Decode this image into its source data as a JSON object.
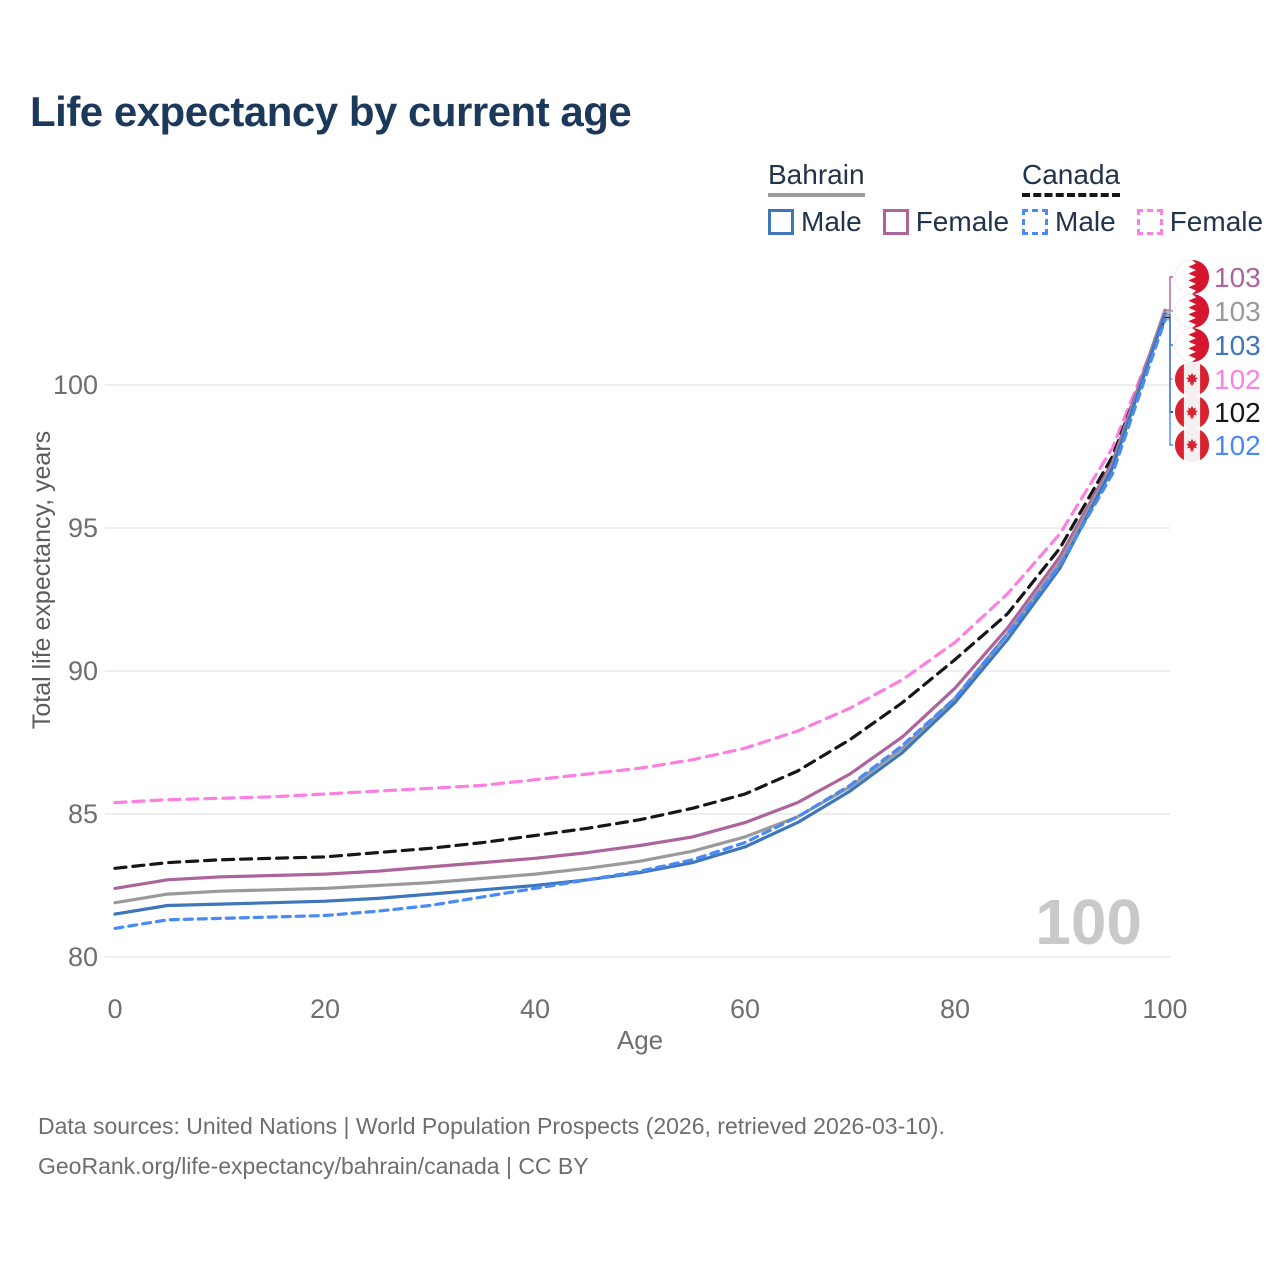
{
  "title": "Life expectancy by current age",
  "legend": {
    "groups": [
      {
        "label": "Bahrain",
        "underline_style": "solid",
        "underline_color": "#9b9b9b",
        "items": [
          {
            "label": "Male",
            "color": "#3d76bb",
            "dashed": false
          },
          {
            "label": "Female",
            "color": "#ad639c",
            "dashed": false
          }
        ]
      },
      {
        "label": "Canada",
        "underline_style": "dashed",
        "underline_color": "#161616",
        "items": [
          {
            "label": "Male",
            "color": "#4a8af4",
            "dashed": true
          },
          {
            "label": "Female",
            "color": "#fc7fe1",
            "dashed": true
          }
        ]
      }
    ]
  },
  "chart_data": {
    "type": "line",
    "title": "Life expectancy by current age",
    "xlabel": "Age",
    "ylabel": "Total life expectancy, years",
    "xticks": [
      0,
      20,
      40,
      60,
      80,
      100
    ],
    "yticks": [
      80,
      85,
      90,
      95,
      100
    ],
    "xlim": [
      0,
      100
    ],
    "ylim": [
      79.8,
      103.6
    ],
    "grid": "horizontal-only",
    "grid_color": "#e9e9e9",
    "watermark": "100",
    "x": [
      0,
      5,
      10,
      15,
      20,
      25,
      30,
      35,
      40,
      45,
      50,
      55,
      60,
      65,
      70,
      75,
      80,
      85,
      90,
      95,
      100
    ],
    "series": [
      {
        "id": "canada-female",
        "name": "Canada Female",
        "country": "Canada",
        "sex": "Female",
        "color": "#fc7fe1",
        "dash": "11 7",
        "flag": "ca",
        "row": 3,
        "end_label": "102",
        "values": [
          85.4,
          85.5,
          85.55,
          85.6,
          85.7,
          85.8,
          85.9,
          86.0,
          86.2,
          86.4,
          86.6,
          86.9,
          87.3,
          87.9,
          88.7,
          89.7,
          91.0,
          92.7,
          94.8,
          97.8,
          102.42
        ]
      },
      {
        "id": "canada-both",
        "name": "Canada Both sexes",
        "country": "Canada",
        "sex": "Both",
        "color": "#161616",
        "dash": "11 7",
        "flag": "ca",
        "row": 4,
        "end_label": "102",
        "values": [
          83.1,
          83.3,
          83.4,
          83.45,
          83.5,
          83.65,
          83.8,
          84.0,
          84.25,
          84.5,
          84.8,
          85.2,
          85.7,
          86.5,
          87.6,
          88.9,
          90.4,
          92.0,
          94.3,
          97.5,
          102.36
        ]
      },
      {
        "id": "bahrain-female",
        "name": "Bahrain Female",
        "country": "Bahrain",
        "sex": "Female",
        "color": "#ad639c",
        "dash": null,
        "flag": "bh",
        "row": 0,
        "end_label": "103",
        "values": [
          82.4,
          82.7,
          82.8,
          82.85,
          82.9,
          83.0,
          83.15,
          83.3,
          83.45,
          83.65,
          83.9,
          84.2,
          84.7,
          85.4,
          86.4,
          87.7,
          89.4,
          91.5,
          94.0,
          97.3,
          102.62
        ]
      },
      {
        "id": "bahrain-both",
        "name": "Bahrain Both sexes",
        "country": "Bahrain",
        "sex": "Both",
        "color": "#9a9a9a",
        "dash": null,
        "flag": "bh",
        "row": 1,
        "end_label": "103",
        "values": [
          81.9,
          82.2,
          82.3,
          82.35,
          82.4,
          82.5,
          82.6,
          82.75,
          82.9,
          83.1,
          83.35,
          83.7,
          84.2,
          84.9,
          85.95,
          87.3,
          89.05,
          91.3,
          93.8,
          97.2,
          102.55
        ]
      },
      {
        "id": "bahrain-male",
        "name": "Bahrain Male",
        "country": "Bahrain",
        "sex": "Male",
        "color": "#3d76bb",
        "dash": null,
        "flag": "bh",
        "row": 2,
        "end_label": "103",
        "values": [
          81.5,
          81.8,
          81.85,
          81.9,
          81.95,
          82.05,
          82.2,
          82.35,
          82.5,
          82.7,
          82.95,
          83.3,
          83.85,
          84.7,
          85.8,
          87.15,
          88.9,
          91.1,
          93.6,
          97.1,
          102.48
        ]
      },
      {
        "id": "canada-male",
        "name": "Canada Male",
        "country": "Canada",
        "sex": "Male",
        "color": "#4a8af4",
        "dash": "8 6",
        "flag": "ca",
        "row": 5,
        "end_label": "102",
        "values": [
          81.0,
          81.3,
          81.35,
          81.4,
          81.45,
          81.6,
          81.8,
          82.1,
          82.4,
          82.7,
          83.0,
          83.4,
          84.0,
          84.9,
          86.0,
          87.4,
          89.05,
          91.3,
          93.7,
          96.9,
          102.28
        ]
      }
    ],
    "flag_colors": {
      "bahrain_red": "#d6152f",
      "canada_red": "#d8222f"
    },
    "axis_text_color": "#6f6f6f",
    "watermark_color": "#c9c9c9"
  },
  "footer": {
    "line1": "Data sources: United Nations | World Population Prospects (2026, retrieved 2026-03-10).",
    "line2": "GeoRank.org/life-expectancy/bahrain/canada | CC BY"
  }
}
